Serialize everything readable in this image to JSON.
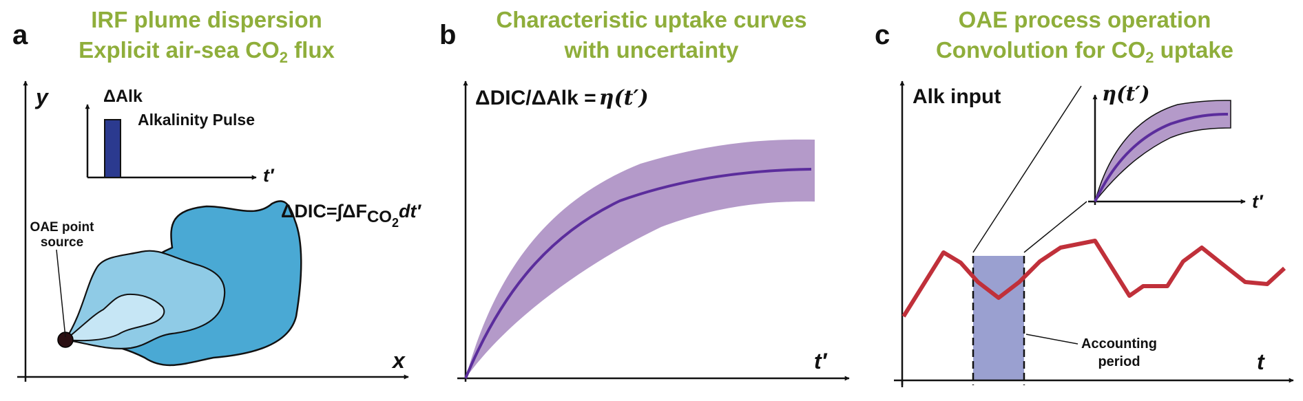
{
  "colors": {
    "title_green": "#8fae3b",
    "axis": "#111111",
    "plume_outer": "#4aa9d4",
    "plume_mid": "#8fcbe6",
    "plume_inner": "#c6e6f5",
    "pulse_bar": "#2b3a8f",
    "band_purple": "#b49ac9",
    "curve_purple": "#5b2d9c",
    "signal_red": "#c0303a",
    "accounting_fill": "#9aa0d0"
  },
  "panel_a": {
    "letter": "a",
    "title_line1": "IRF plume dispersion",
    "title_line2_prefix": "Explicit air-sea CO",
    "title_line2_sub": "2",
    "title_line2_suffix": " flux",
    "y_label": "y",
    "x_label": "x",
    "inset_y_label": "ΔAlk",
    "inset_x_label": "t′",
    "pulse_label": "Alkalinity Pulse",
    "source_label_line1": "OAE point",
    "source_label_line2": "source",
    "dic_eq_prefix": "ΔDIC=∫ΔF",
    "dic_eq_sub": "CO",
    "dic_eq_sub2": "2",
    "dic_eq_suffix": "dt′"
  },
  "panel_b": {
    "letter": "b",
    "title_line1": "Characteristic uptake curves",
    "title_line2": "with uncertainty",
    "y_label_prefix": "ΔDIC/ΔAlk =",
    "y_label_eta": "η(t′)",
    "x_label": "t′"
  },
  "panel_c": {
    "letter": "c",
    "title_line1": "OAE process operation",
    "title_line2_prefix": "Convolution for CO",
    "title_line2_sub": "2",
    "title_line2_suffix": " uptake",
    "y_label": "Alk input",
    "x_label": "t",
    "inset_y_label": "η(t′)",
    "inset_x_label": "t′",
    "period_label_line1": "Accounting",
    "period_label_line2": "period"
  }
}
